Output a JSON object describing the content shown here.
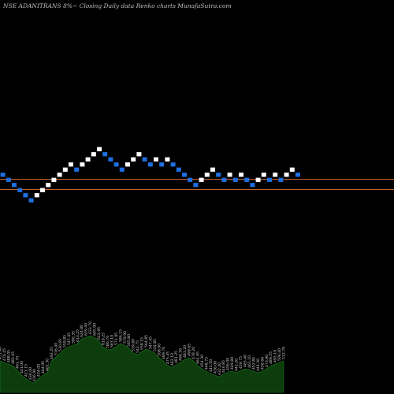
{
  "header": {
    "title": "NSE ADANITRANS 8%~  Closing Daily data  Renko  charts MunafaSutra.com"
  },
  "colors": {
    "background": "#000000",
    "up_brick": "#ffffff",
    "down_brick": "#1e6fe0",
    "support_line": "#c0602a",
    "volume_fill": "#0d3d0d",
    "volume_outline": "#1f7a1f",
    "label": "#cfcfcf"
  },
  "chart_data": {
    "type": "renko",
    "brick_size_percent": 8,
    "bricks": [
      {
        "level": 10,
        "dir": "down"
      },
      {
        "level": 9,
        "dir": "down"
      },
      {
        "level": 8,
        "dir": "down"
      },
      {
        "level": 7,
        "dir": "down"
      },
      {
        "level": 6,
        "dir": "down"
      },
      {
        "level": 5,
        "dir": "down"
      },
      {
        "level": 6,
        "dir": "up"
      },
      {
        "level": 7,
        "dir": "up"
      },
      {
        "level": 8,
        "dir": "up"
      },
      {
        "level": 9,
        "dir": "up"
      },
      {
        "level": 10,
        "dir": "up"
      },
      {
        "level": 11,
        "dir": "up"
      },
      {
        "level": 12,
        "dir": "up"
      },
      {
        "level": 11,
        "dir": "down"
      },
      {
        "level": 12,
        "dir": "up"
      },
      {
        "level": 13,
        "dir": "up"
      },
      {
        "level": 14,
        "dir": "up"
      },
      {
        "level": 15,
        "dir": "up"
      },
      {
        "level": 14,
        "dir": "down"
      },
      {
        "level": 13,
        "dir": "down"
      },
      {
        "level": 12,
        "dir": "down"
      },
      {
        "level": 11,
        "dir": "down"
      },
      {
        "level": 12,
        "dir": "up"
      },
      {
        "level": 13,
        "dir": "up"
      },
      {
        "level": 14,
        "dir": "up"
      },
      {
        "level": 13,
        "dir": "down"
      },
      {
        "level": 12,
        "dir": "down"
      },
      {
        "level": 13,
        "dir": "up"
      },
      {
        "level": 12,
        "dir": "down"
      },
      {
        "level": 13,
        "dir": "up"
      },
      {
        "level": 12,
        "dir": "down"
      },
      {
        "level": 11,
        "dir": "down"
      },
      {
        "level": 10,
        "dir": "down"
      },
      {
        "level": 9,
        "dir": "down"
      },
      {
        "level": 8,
        "dir": "down"
      },
      {
        "level": 9,
        "dir": "up"
      },
      {
        "level": 10,
        "dir": "up"
      },
      {
        "level": 11,
        "dir": "up"
      },
      {
        "level": 10,
        "dir": "down"
      },
      {
        "level": 9,
        "dir": "down"
      },
      {
        "level": 10,
        "dir": "up"
      },
      {
        "level": 9,
        "dir": "down"
      },
      {
        "level": 10,
        "dir": "up"
      },
      {
        "level": 9,
        "dir": "down"
      },
      {
        "level": 8,
        "dir": "down"
      },
      {
        "level": 9,
        "dir": "up"
      },
      {
        "level": 10,
        "dir": "up"
      },
      {
        "level": 9,
        "dir": "down"
      },
      {
        "level": 10,
        "dir": "up"
      },
      {
        "level": 9,
        "dir": "down"
      },
      {
        "level": 10,
        "dir": "up"
      },
      {
        "level": 11,
        "dir": "up"
      },
      {
        "level": 10,
        "dir": "down"
      }
    ],
    "reference_levels": [
      9.5,
      7.5
    ],
    "volume": [
      {
        "value": 40,
        "label": "431.40"
      },
      {
        "value": 38,
        "label": "476.45"
      },
      {
        "value": 36,
        "label": "488.05"
      },
      {
        "value": 34,
        "label": "482.05"
      },
      {
        "value": 28,
        "label": "461.70"
      },
      {
        "value": 22,
        "label": "441.00"
      },
      {
        "value": 18,
        "label": "421.15"
      },
      {
        "value": 14,
        "label": "436.00"
      },
      {
        "value": 12,
        "label": "426.90"
      },
      {
        "value": 18,
        "label": "434.00"
      },
      {
        "value": 22,
        "label": "464.95"
      },
      {
        "value": 25,
        "label": "461.30"
      },
      {
        "value": 40,
        "label": "492.25"
      },
      {
        "value": 45,
        "label": "516.40"
      },
      {
        "value": 50,
        "label": "530.65"
      },
      {
        "value": 55,
        "label": "559.85"
      },
      {
        "value": 58,
        "label": "547.45"
      },
      {
        "value": 60,
        "label": "580.35"
      },
      {
        "value": 62,
        "label": "613.25"
      },
      {
        "value": 68,
        "label": "624.80"
      },
      {
        "value": 70,
        "label": "639.40"
      },
      {
        "value": 72,
        "label": "633.70"
      },
      {
        "value": 70,
        "label": "605.90"
      },
      {
        "value": 65,
        "label": "612.95"
      },
      {
        "value": 58,
        "label": "619.25"
      },
      {
        "value": 54,
        "label": "586.70"
      },
      {
        "value": 55,
        "label": "583.10"
      },
      {
        "value": 58,
        "label": "571.95"
      },
      {
        "value": 62,
        "label": "586.15"
      },
      {
        "value": 60,
        "label": "579.90"
      },
      {
        "value": 56,
        "label": "565.80"
      },
      {
        "value": 50,
        "label": "539.80"
      },
      {
        "value": 48,
        "label": "542.75"
      },
      {
        "value": 52,
        "label": "558.15"
      },
      {
        "value": 55,
        "label": "564.85"
      },
      {
        "value": 53,
        "label": "547.45"
      },
      {
        "value": 50,
        "label": "524.85"
      },
      {
        "value": 44,
        "label": "508.00"
      },
      {
        "value": 40,
        "label": "489.70"
      },
      {
        "value": 34,
        "label": "475.45"
      },
      {
        "value": 32,
        "label": "462.10"
      },
      {
        "value": 35,
        "label": "481.25"
      },
      {
        "value": 38,
        "label": "496.50"
      },
      {
        "value": 42,
        "label": "483.20"
      },
      {
        "value": 44,
        "label": "499.65"
      },
      {
        "value": 40,
        "label": "478.20"
      },
      {
        "value": 34,
        "label": "461.95"
      },
      {
        "value": 30,
        "label": "454.30"
      },
      {
        "value": 27,
        "label": "448.75"
      },
      {
        "value": 24,
        "label": "441.50"
      },
      {
        "value": 22,
        "label": "436.00"
      },
      {
        "value": 20,
        "label": "432.40"
      },
      {
        "value": 23,
        "label": "446.85"
      },
      {
        "value": 26,
        "label": "456.00"
      },
      {
        "value": 27,
        "label": "449.80"
      },
      {
        "value": 25,
        "label": "442.20"
      },
      {
        "value": 28,
        "label": "459.75"
      },
      {
        "value": 30,
        "label": "465.40"
      },
      {
        "value": 29,
        "label": "461.10"
      },
      {
        "value": 27,
        "label": "452.85"
      },
      {
        "value": 25,
        "label": "444.30"
      },
      {
        "value": 27,
        "label": "458.60"
      },
      {
        "value": 30,
        "label": "473.90"
      },
      {
        "value": 34,
        "label": "489.55"
      },
      {
        "value": 36,
        "label": "495.10"
      },
      {
        "value": 38,
        "label": "506.40"
      },
      {
        "value": 40,
        "label": "512.70"
      }
    ]
  }
}
